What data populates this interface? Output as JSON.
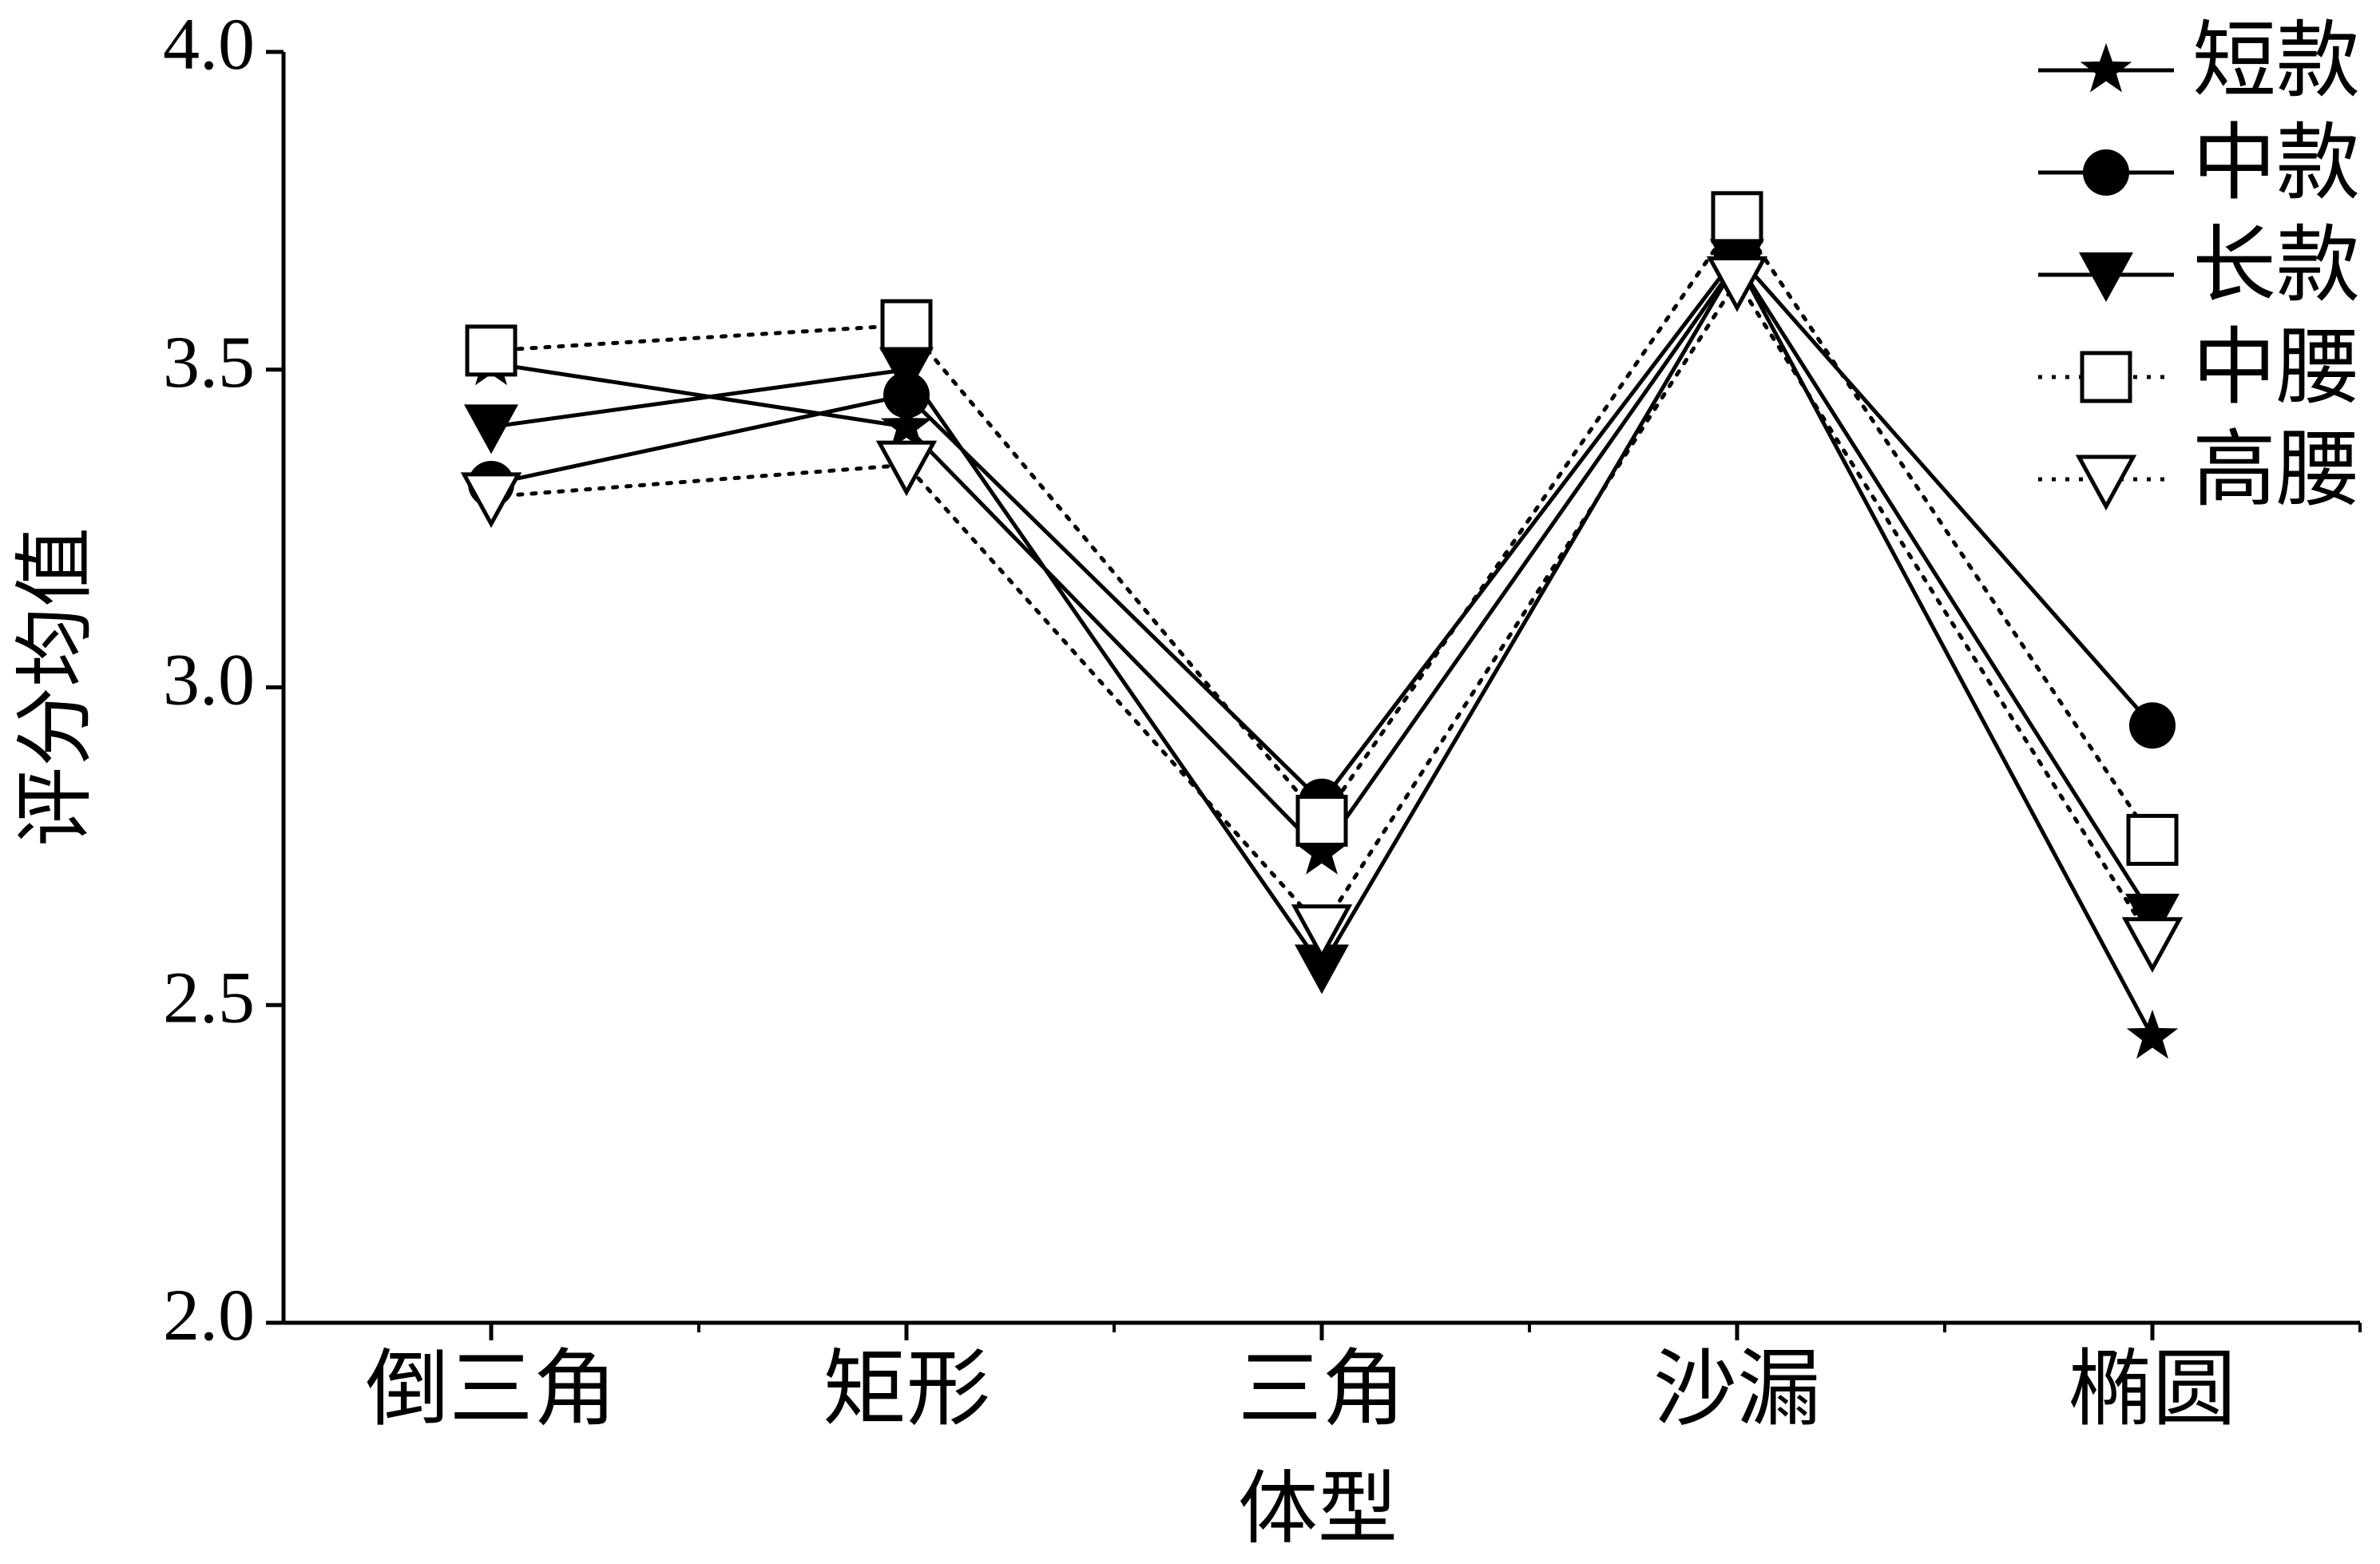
{
  "chart_data": {
    "type": "line",
    "x_label": "体型",
    "y_label": "评分均值",
    "categories": [
      "倒三角",
      "矩形",
      "三角",
      "沙漏",
      "椭圆"
    ],
    "series": [
      {
        "name": "短款",
        "color": "#000000",
        "line_style": "solid",
        "marker": "star",
        "values": [
          3.51,
          3.41,
          2.74,
          3.67,
          2.45
        ]
      },
      {
        "name": "中款",
        "color": "#000000",
        "line_style": "solid",
        "marker": "circle",
        "values": [
          3.32,
          3.46,
          2.82,
          3.68,
          2.94
        ]
      },
      {
        "name": "长款",
        "color": "#000000",
        "line_style": "solid",
        "marker": "triangle-down-filled",
        "values": [
          3.41,
          3.5,
          2.56,
          3.67,
          2.64
        ]
      },
      {
        "name": "中腰",
        "color": "#000000",
        "line_style": "dotted",
        "marker": "square-open",
        "values": [
          3.53,
          3.57,
          2.79,
          3.74,
          2.76
        ]
      },
      {
        "name": "高腰",
        "color": "#000000",
        "line_style": "dotted",
        "marker": "triangle-down-open",
        "values": [
          3.3,
          3.35,
          2.62,
          3.64,
          2.6
        ]
      }
    ],
    "ylim": [
      2.0,
      4.0
    ],
    "yticks": [
      {
        "value": 2,
        "label": "2.0"
      },
      {
        "value": 2.5,
        "label": "2.5"
      },
      {
        "value": 3,
        "label": "3.0"
      },
      {
        "value": 3.5,
        "label": "3.5"
      },
      {
        "value": 4,
        "label": "4.0"
      }
    ],
    "legend": "top-right"
  }
}
